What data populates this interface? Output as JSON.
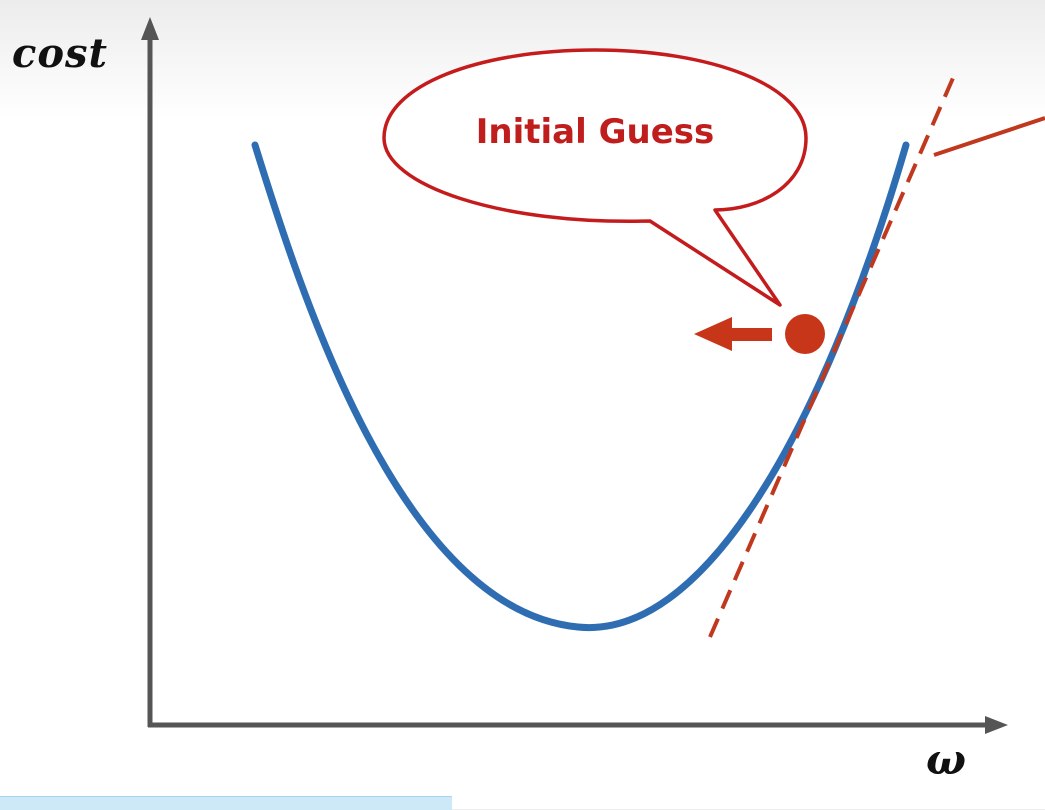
{
  "axes": {
    "y_label": "cost",
    "x_label": "ω"
  },
  "callout": {
    "text": "Initial Guess"
  },
  "colors": {
    "curve": "#2f6db3",
    "tangent": "#c0391e",
    "point": "#c8361a",
    "callout_border": "#c41c1c",
    "axis": "#555555"
  },
  "icons": {
    "arrow": "left-arrow-icon"
  }
}
